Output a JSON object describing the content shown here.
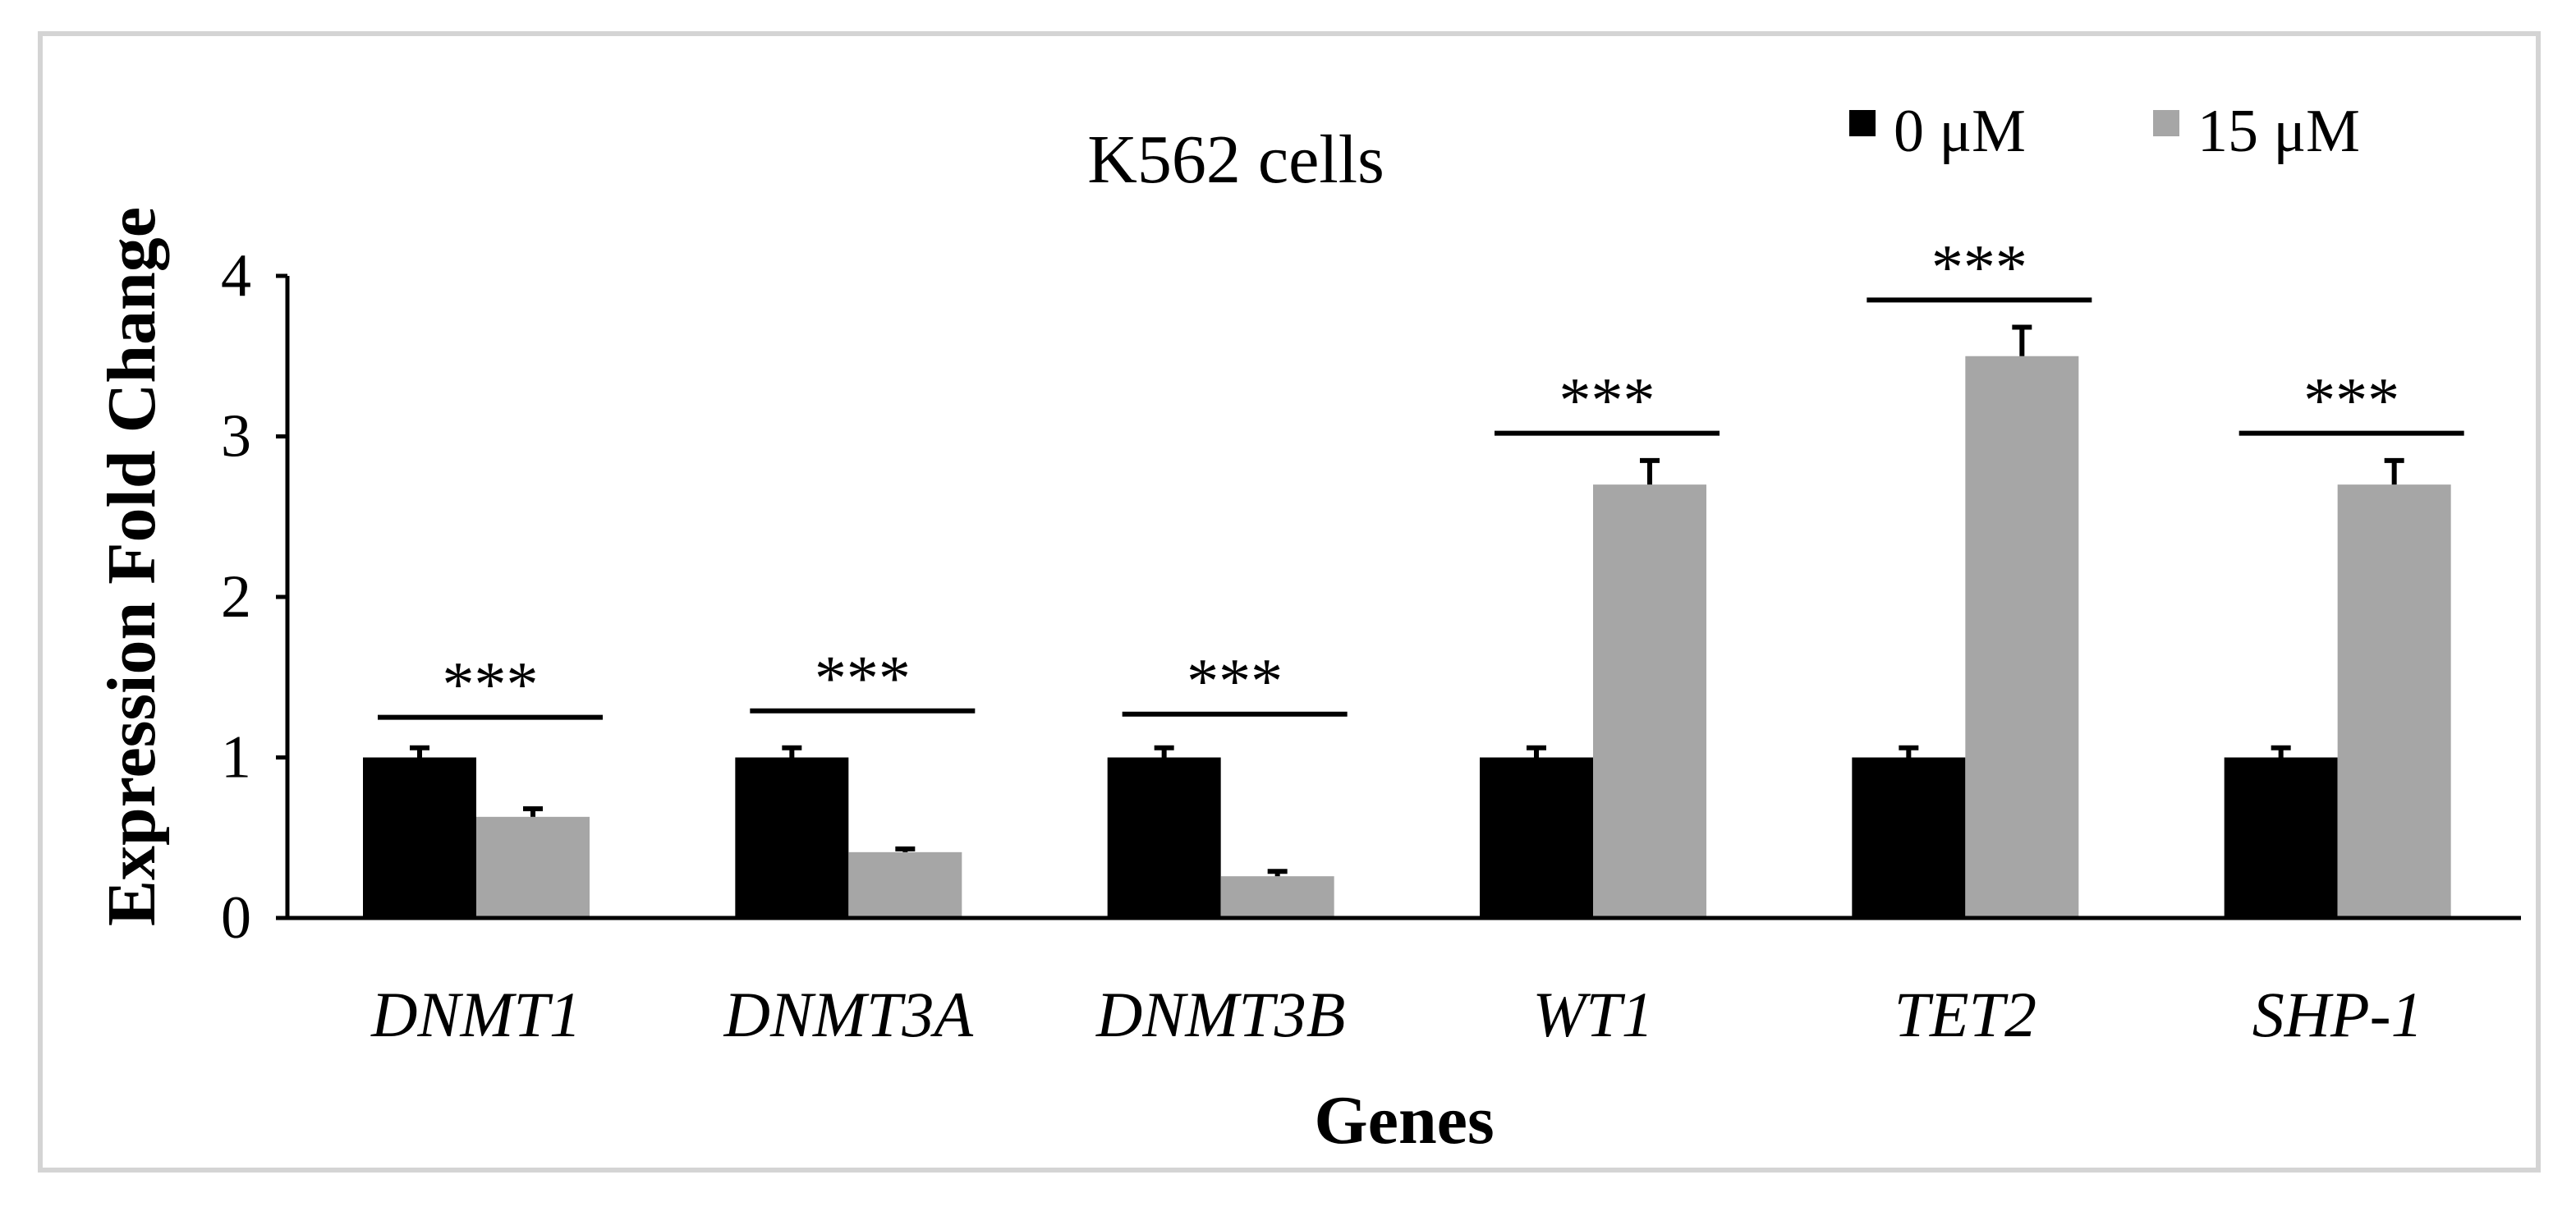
{
  "chart_data": {
    "type": "bar",
    "title": "K562 cells",
    "xlabel": "Genes",
    "ylabel": "Expression Fold Change",
    "ylim": [
      0,
      4
    ],
    "yticks": [
      "0",
      "1",
      "2",
      "3",
      "4"
    ],
    "categories": [
      "DNMT1",
      "DNMT3A",
      "DNMT3B",
      "WT1",
      "TET2",
      "SHP-1"
    ],
    "series": [
      {
        "name": "0 μM",
        "color": "#000000",
        "values": [
          1.0,
          1.0,
          1.0,
          1.0,
          1.0,
          1.0
        ],
        "errors": [
          0.06,
          0.06,
          0.06,
          0.06,
          0.06,
          0.06
        ]
      },
      {
        "name": "15 μM",
        "color": "#a6a6a6",
        "values": [
          0.63,
          0.41,
          0.26,
          2.7,
          3.5,
          2.7
        ],
        "errors": [
          0.05,
          0.02,
          0.03,
          0.15,
          0.18,
          0.15
        ]
      }
    ],
    "significance": [
      {
        "category": "DNMT1",
        "label": "***",
        "level": 1.25
      },
      {
        "category": "DNMT3A",
        "label": "***",
        "level": 1.29
      },
      {
        "category": "DNMT3B",
        "label": "***",
        "level": 1.27
      },
      {
        "category": "WT1",
        "label": "***",
        "level": 3.02
      },
      {
        "category": "TET2",
        "label": "***",
        "level": 3.85
      },
      {
        "category": "SHP-1",
        "label": "***",
        "level": 3.02
      }
    ],
    "legend_position": "top-right",
    "grid": false
  }
}
